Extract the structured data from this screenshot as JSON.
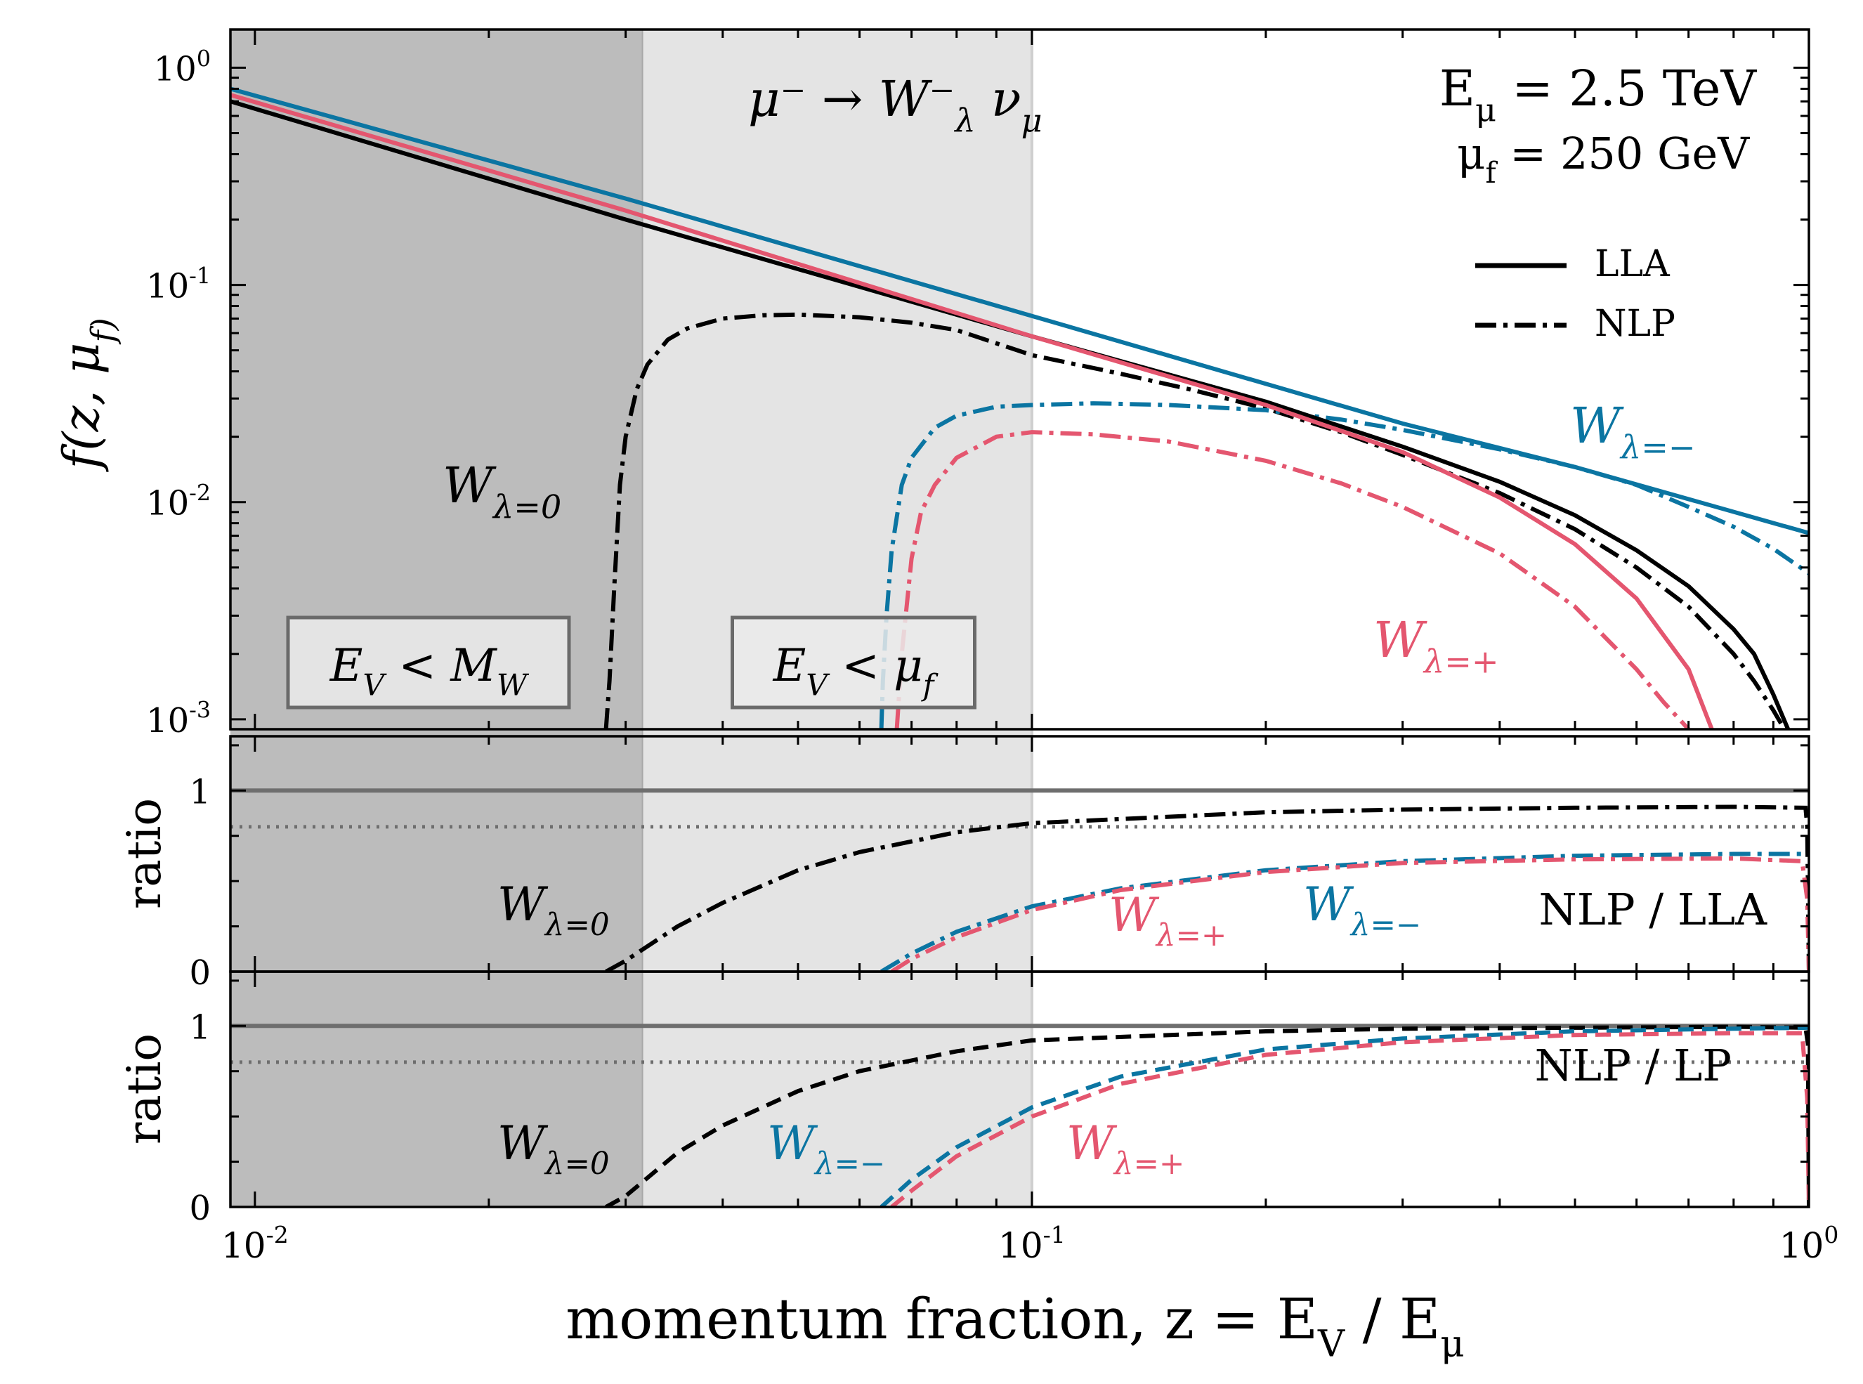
{
  "colors": {
    "black": "#000000",
    "pink": "#e4566f",
    "blue": "#0b75a2",
    "darkShade": "#bcbcbc",
    "lightShade": "#e4e4e4",
    "refLine": "#6e6e6e"
  },
  "chart_data": [
    {
      "type": "line",
      "panel": "top",
      "ylabel": "f(z, μ_f)",
      "yscale": "log",
      "ylim": [
        0.0009,
        1.5
      ],
      "xscale": "log",
      "xlim": [
        0.0093,
        1.0
      ],
      "yticklabels": [
        "10^0",
        "10^-1",
        "10^-2",
        "10^-3"
      ],
      "title": "μ⁻ → W⁻_λ ν_μ",
      "annotations": {
        "energy": "E_μ = 2.5 TeV",
        "scale": "μ_f = 250 GeV",
        "region1": "E_V < M_W",
        "region2": "E_V < μ_f"
      },
      "shaded_regions": [
        {
          "x": [
            0.0093,
            0.0316
          ],
          "shade": "dark"
        },
        {
          "x": [
            0.0316,
            0.1
          ],
          "shade": "light"
        }
      ],
      "legend": {
        "placement": "upper-right",
        "entries": [
          "LLA",
          "NLP"
        ]
      },
      "series": [
        {
          "name": "W_λ=0",
          "style": "dash-dot",
          "color": "black",
          "x": [
            0.0283,
            0.0286,
            0.029,
            0.0295,
            0.03,
            0.031,
            0.032,
            0.034,
            0.036,
            0.04,
            0.045,
            0.05,
            0.06,
            0.07,
            0.08,
            0.1,
            0.13,
            0.16,
            0.2,
            0.25,
            0.3,
            0.4,
            0.5,
            0.6,
            0.7,
            0.8,
            0.85,
            0.9,
            0.93
          ],
          "y": [
            0.0009,
            0.0015,
            0.004,
            0.012,
            0.02,
            0.033,
            0.043,
            0.056,
            0.063,
            0.07,
            0.0725,
            0.073,
            0.071,
            0.067,
            0.062,
            0.0475,
            0.039,
            0.033,
            0.027,
            0.021,
            0.0165,
            0.011,
            0.0075,
            0.005,
            0.0033,
            0.002,
            0.0015,
            0.0011,
            0.0009
          ]
        },
        {
          "name": "W_λ=−",
          "style": "dash-dot",
          "color": "blue",
          "x": [
            0.064,
            0.0643,
            0.065,
            0.066,
            0.068,
            0.07,
            0.075,
            0.08,
            0.09,
            0.1,
            0.12,
            0.15,
            0.2,
            0.25,
            0.3,
            0.4,
            0.5,
            0.6,
            0.7,
            0.8,
            0.9,
            1.0
          ],
          "y": [
            0.0009,
            0.0015,
            0.003,
            0.006,
            0.012,
            0.016,
            0.022,
            0.025,
            0.0275,
            0.028,
            0.0285,
            0.028,
            0.0265,
            0.024,
            0.0215,
            0.0175,
            0.0145,
            0.012,
            0.0095,
            0.0077,
            0.0061,
            0.0047
          ]
        },
        {
          "name": "W_λ=+",
          "style": "dash-dot",
          "color": "pink",
          "x": [
            0.067,
            0.068,
            0.07,
            0.072,
            0.075,
            0.08,
            0.09,
            0.1,
            0.12,
            0.15,
            0.2,
            0.25,
            0.3,
            0.4,
            0.5,
            0.6,
            0.65,
            0.7
          ],
          "y": [
            0.0009,
            0.002,
            0.0055,
            0.009,
            0.012,
            0.016,
            0.02,
            0.021,
            0.0205,
            0.019,
            0.0155,
            0.0122,
            0.0095,
            0.0058,
            0.0033,
            0.0017,
            0.0012,
            0.0009
          ]
        },
        {
          "name": "W_λ=0",
          "style": "solid",
          "color": "black",
          "x": [
            0.0093,
            0.03,
            0.1,
            0.2,
            0.3,
            0.4,
            0.5,
            0.6,
            0.7,
            0.8,
            0.85,
            0.9,
            0.94
          ],
          "y": [
            0.7,
            0.2,
            0.058,
            0.029,
            0.018,
            0.0124,
            0.0087,
            0.006,
            0.0041,
            0.0026,
            0.002,
            0.0013,
            0.0009
          ]
        },
        {
          "name": "W_λ=+",
          "style": "solid",
          "color": "pink",
          "x": [
            0.0093,
            0.03,
            0.1,
            0.2,
            0.3,
            0.4,
            0.5,
            0.6,
            0.7,
            0.75
          ],
          "y": [
            0.75,
            0.22,
            0.058,
            0.028,
            0.017,
            0.0105,
            0.0064,
            0.0036,
            0.0017,
            0.0009
          ]
        },
        {
          "name": "W_λ=−",
          "style": "solid",
          "color": "blue",
          "x": [
            0.0093,
            0.03,
            0.1,
            0.3,
            0.5,
            1.0
          ],
          "y": [
            0.8,
            0.25,
            0.072,
            0.023,
            0.0145,
            0.0072
          ]
        }
      ],
      "series_labels": [
        "W_λ=0",
        "W_λ=−",
        "W_λ=+"
      ]
    },
    {
      "type": "line",
      "panel": "middle",
      "ylabel": "ratio",
      "ylim": [
        0,
        1.3
      ],
      "yticklabels": [
        "0",
        "1"
      ],
      "panel_label": "NLP / LLA",
      "reference_lines": [
        {
          "y": 1.0,
          "style": "solid"
        },
        {
          "y": 0.8,
          "style": "dotted"
        }
      ],
      "series": [
        {
          "name": "W_λ=0",
          "style": "dash-dot",
          "color": "black",
          "x": [
            0.0283,
            0.03,
            0.035,
            0.04,
            0.05,
            0.06,
            0.08,
            0.1,
            0.2,
            0.3,
            0.5,
            0.8,
            0.99,
            0.995,
            1.0
          ],
          "y": [
            0.0,
            0.06,
            0.25,
            0.38,
            0.56,
            0.66,
            0.77,
            0.82,
            0.88,
            0.895,
            0.905,
            0.91,
            0.905,
            0.8,
            0.0
          ]
        },
        {
          "name": "W_λ=−",
          "style": "dash-dot",
          "color": "blue",
          "x": [
            0.064,
            0.07,
            0.08,
            0.1,
            0.13,
            0.2,
            0.3,
            0.5,
            0.8,
            1.0
          ],
          "y": [
            0.0,
            0.1,
            0.22,
            0.36,
            0.46,
            0.56,
            0.61,
            0.64,
            0.65,
            0.65
          ]
        },
        {
          "name": "W_λ=+",
          "style": "dash-dot",
          "color": "pink",
          "x": [
            0.066,
            0.07,
            0.08,
            0.1,
            0.13,
            0.2,
            0.3,
            0.5,
            0.8,
            0.98,
            0.995,
            1.0
          ],
          "y": [
            0.0,
            0.07,
            0.19,
            0.34,
            0.45,
            0.55,
            0.6,
            0.62,
            0.625,
            0.61,
            0.4,
            0.0
          ]
        }
      ],
      "series_labels": [
        "W_λ=0",
        "W_λ=+",
        "W_λ=−"
      ]
    },
    {
      "type": "line",
      "panel": "bottom",
      "ylabel": "ratio",
      "ylim": [
        0,
        1.3
      ],
      "yticklabels": [
        "0",
        "1"
      ],
      "panel_label": "NLP / LP",
      "xlabel": "momentum fraction, z = E_V / E_μ",
      "xticklabels": [
        "10^-2",
        "10^-1",
        "10^0"
      ],
      "reference_lines": [
        {
          "y": 1.0,
          "style": "solid"
        },
        {
          "y": 0.8,
          "style": "dotted"
        }
      ],
      "series": [
        {
          "name": "W_λ=0",
          "style": "dashed",
          "color": "black",
          "x": [
            0.0283,
            0.03,
            0.035,
            0.04,
            0.05,
            0.06,
            0.08,
            0.1,
            0.2,
            0.3,
            0.5,
            0.8,
            0.99,
            0.997,
            1.0
          ],
          "y": [
            0.0,
            0.06,
            0.3,
            0.45,
            0.64,
            0.75,
            0.86,
            0.92,
            0.97,
            0.985,
            0.99,
            0.995,
            0.99,
            0.9,
            0.0
          ]
        },
        {
          "name": "W_λ=−",
          "style": "dashed",
          "color": "blue",
          "x": [
            0.064,
            0.07,
            0.08,
            0.1,
            0.13,
            0.2,
            0.3,
            0.5,
            0.8,
            1.0
          ],
          "y": [
            0.0,
            0.15,
            0.33,
            0.55,
            0.72,
            0.87,
            0.93,
            0.97,
            0.985,
            0.99
          ]
        },
        {
          "name": "W_λ=+",
          "style": "dashed",
          "color": "pink",
          "x": [
            0.066,
            0.07,
            0.08,
            0.1,
            0.13,
            0.2,
            0.3,
            0.5,
            0.8,
            0.98,
            0.995,
            1.0
          ],
          "y": [
            0.0,
            0.09,
            0.28,
            0.5,
            0.68,
            0.84,
            0.91,
            0.95,
            0.96,
            0.96,
            0.6,
            0.0
          ]
        }
      ],
      "series_labels": [
        "W_λ=0",
        "W_λ=−",
        "W_λ=+"
      ]
    }
  ]
}
